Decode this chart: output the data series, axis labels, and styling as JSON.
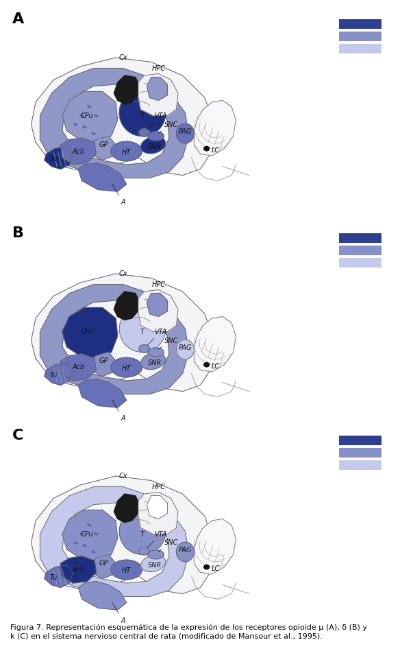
{
  "figure_width": 5.84,
  "figure_height": 9.49,
  "dpi": 100,
  "background_color": "#ffffff",
  "panel_labels": [
    "A",
    "B",
    "C"
  ],
  "panel_label_fontsize": 16,
  "panel_label_fontweight": "bold",
  "legend_colors_A": [
    "#2e3f8f",
    "#8890c8",
    "#c5caec"
  ],
  "legend_colors_B": [
    "#2e3f8f",
    "#8890c8",
    "#c5caec"
  ],
  "legend_colors_C": [
    "#2e3f8f",
    "#8890c8",
    "#c5caec"
  ],
  "caption_text": "Figura 7. Representación esquemática de la expresión de los receptores opioide μ (A), δ (B) y\nk (C) en el sistema nervioso central de rata (modificado de Mansour et al., 1995).",
  "caption_fontsize": 8.0,
  "panels": [
    {
      "label": "A",
      "regions": {
        "cortex": "#9098c8",
        "CPu": "#9098c8",
        "T": "#1e2e80",
        "HPC": "#9098c8",
        "Acb": "#6870b8",
        "GP": "#9098c8",
        "Tu": "#1e2e80",
        "HT": "#6870b8",
        "SNR": "#1e2e80",
        "SNC": "#6870b8",
        "VTA": "#6870b8",
        "PAG": "#6870b8",
        "LC": "#1e2e80",
        "A": "#6870b8"
      }
    },
    {
      "label": "B",
      "regions": {
        "cortex": "#9098c8",
        "CPu": "#1e2e80",
        "T": "#c5caec",
        "HPC": "#8890c8",
        "Acb": "#6870b8",
        "GP": "#8890c8",
        "Tu": "#6870b8",
        "HT": "#6870b8",
        "SNR": "#8890c8",
        "SNC": "#8890c8",
        "VTA": "#8890c8",
        "PAG": "#c5caec",
        "LC": "#1e2e80",
        "A": "#6870b8"
      }
    },
    {
      "label": "C",
      "regions": {
        "cortex": "#c5caec",
        "CPu": "#8890c8",
        "T": "#8890c8",
        "HPC": "#ffffff",
        "Acb": "#1e2e80",
        "GP": "#8890c8",
        "Tu": "#6870b8",
        "HT": "#6870b8",
        "SNR": "#c5caec",
        "SNC": "#8890c8",
        "VTA": "#8890c8",
        "PAG": "#8890c8",
        "LC": "#1e2e80",
        "A": "#8890c8"
      }
    }
  ]
}
